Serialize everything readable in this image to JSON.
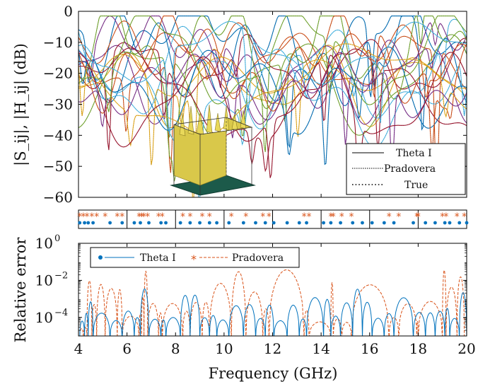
{
  "chart_data": [
    {
      "type": "line",
      "panel": "magnitude",
      "xlabel": "",
      "ylabel": "|S_ij|, |H_ij| (dB)",
      "xlim": [
        4,
        20
      ],
      "ylim": [
        -60,
        0
      ],
      "yticks": [
        "0",
        "−10",
        "−20",
        "−30",
        "−40",
        "−50",
        "−60"
      ],
      "yticks_values": [
        0,
        -10,
        -20,
        -30,
        -40,
        -50,
        -60
      ],
      "grid": true,
      "legend_position": "bottom-right",
      "legend": [
        {
          "name": "Theta I",
          "style": "solid"
        },
        {
          "name": "Pradovera",
          "style": "dashed"
        },
        {
          "name": "True",
          "style": "dotted"
        }
      ],
      "series_colors": [
        "#0072bd",
        "#d95319",
        "#edb120",
        "#7e2f8e",
        "#77ac30",
        "#4dbeee",
        "#a2142f"
      ],
      "curve_count": 21,
      "inset": "3-D array structure (yellow elements on green ground plane)"
    },
    {
      "type": "scatter",
      "panel": "sample-points",
      "xlim": [
        4,
        20
      ],
      "series": [
        {
          "name": "Theta I",
          "marker": "dot",
          "color": "#0072bd",
          "x": [
            4.05,
            4.25,
            4.4,
            4.6,
            5.3,
            5.8,
            6.3,
            6.55,
            6.9,
            7.4,
            7.6,
            8.2,
            8.6,
            9.0,
            9.4,
            9.7,
            10.2,
            10.8,
            11.3,
            11.7,
            12.05,
            12.6,
            13.1,
            13.4,
            14.1,
            14.4,
            14.8,
            15.3,
            15.7,
            16.1,
            16.6,
            17.0,
            17.8,
            18.3,
            18.7,
            19.1,
            19.3,
            19.7,
            20.0
          ]
        },
        {
          "name": "Pradovera",
          "marker": "star",
          "color": "#d95319",
          "x": [
            4.05,
            4.2,
            4.35,
            4.55,
            4.75,
            5.1,
            5.6,
            5.8,
            6.5,
            6.6,
            6.7,
            6.85,
            7.3,
            7.45,
            8.3,
            8.6,
            9.1,
            9.4,
            10.3,
            10.9,
            11.6,
            11.85,
            13.3,
            13.5,
            14.4,
            14.5,
            14.85,
            15.25,
            16.8,
            17.2,
            17.95,
            18.0,
            19.0,
            19.15,
            19.6,
            19.9
          ]
        }
      ]
    },
    {
      "type": "line",
      "panel": "error",
      "xlabel": "Frequency (GHz)",
      "ylabel": "Relative error",
      "xlim": [
        4,
        20
      ],
      "ylim_log10": [
        -5,
        0
      ],
      "log_scale": true,
      "xticks": [
        "4",
        "6",
        "8",
        "10",
        "12",
        "14",
        "16",
        "18",
        "20"
      ],
      "xticks_values": [
        4,
        6,
        8,
        10,
        12,
        14,
        16,
        18,
        20
      ],
      "legend_position": "top-left",
      "legend": [
        {
          "name": "Theta I",
          "style": "solid",
          "marker": "dot",
          "color": "#0072bd"
        },
        {
          "name": "Pradovera",
          "style": "dashed",
          "marker": "star",
          "color": "#d95319"
        }
      ]
    }
  ]
}
